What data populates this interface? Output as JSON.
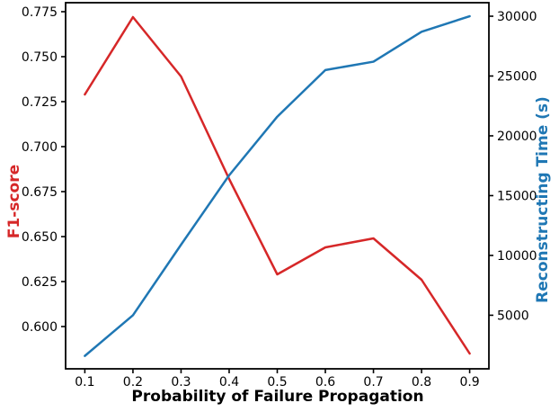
{
  "chart_data": {
    "type": "line",
    "title": "",
    "xlabel": "Probability of Failure Propagation",
    "ylabel_left": "F1-score",
    "ylabel_right": "Reconstructing Time (s)",
    "x": [
      0.1,
      0.2,
      0.3,
      0.4,
      0.5,
      0.6,
      0.7,
      0.8,
      0.9
    ],
    "x_tick_labels": [
      "0.1",
      "0.2",
      "0.3",
      "0.4",
      "0.5",
      "0.6",
      "0.7",
      "0.8",
      "0.9"
    ],
    "series": [
      {
        "name": "F1-score",
        "axis": "left",
        "color": "#d62728",
        "values": [
          0.729,
          0.772,
          0.739,
          0.682,
          0.629,
          0.644,
          0.649,
          0.626,
          0.585
        ]
      },
      {
        "name": "Reconstructing Time (s)",
        "axis": "right",
        "color": "#1f77b4",
        "values": [
          1600,
          5000,
          10900,
          16700,
          21600,
          25500,
          26200,
          28700,
          30000
        ]
      }
    ],
    "y_left_ticks": [
      0.6,
      0.625,
      0.65,
      0.675,
      0.7,
      0.725,
      0.75,
      0.775
    ],
    "y_left_tick_labels": [
      "0.600",
      "0.625",
      "0.650",
      "0.675",
      "0.700",
      "0.725",
      "0.750",
      "0.775"
    ],
    "y_right_ticks": [
      5000,
      10000,
      15000,
      20000,
      25000,
      30000
    ],
    "y_right_tick_labels": [
      "5000",
      "10000",
      "15000",
      "20000",
      "25000",
      "30000"
    ],
    "xlim": [
      0.06,
      0.94
    ],
    "ylim_left": [
      0.5765,
      0.78
    ],
    "ylim_right": [
      520,
      31130
    ],
    "grid": false,
    "legend_position": "none",
    "colors": {
      "left_axis_label": "#d62728",
      "right_axis_label": "#1f77b4",
      "tick_labels": "#000000",
      "spines": "#000000",
      "background": "#ffffff"
    }
  }
}
